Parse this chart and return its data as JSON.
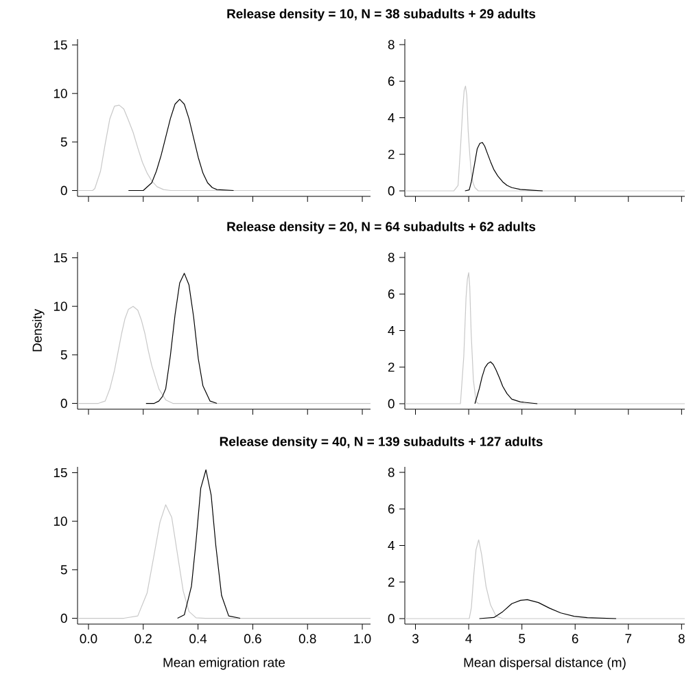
{
  "chart_data": [
    {
      "type": "line",
      "title": "Release density = 10, N = 38 subadults + 29 adults",
      "xlim": [
        -0.04,
        1.03
      ],
      "ylim": [
        -0.6,
        15.6
      ],
      "xticks": [
        {
          "value": 0,
          "label": null
        },
        {
          "value": 0.2,
          "label": null
        },
        {
          "value": 0.4,
          "label": null
        },
        {
          "value": 0.6,
          "label": null
        },
        {
          "value": 0.8,
          "label": null
        },
        {
          "value": 1,
          "label": null
        }
      ],
      "yticks": [
        0,
        5,
        10,
        15
      ],
      "tick_labels": "y",
      "series": [
        {
          "color": "#c8c8c8",
          "x": [
            -0.04,
            0.015,
            0.023,
            0.044,
            0.061,
            0.078,
            0.095,
            0.112,
            0.129,
            0.145,
            0.163,
            0.18,
            0.197,
            0.214,
            0.231,
            0.25,
            0.274,
            0.3,
            1.03
          ],
          "values": [
            0,
            0,
            0.2,
            2.0,
            4.8,
            7.4,
            8.7,
            8.8,
            8.4,
            7.3,
            6.0,
            4.4,
            2.9,
            1.8,
            1.0,
            0.4,
            0.1,
            0,
            0
          ]
        },
        {
          "color": "#000000",
          "x": [
            0.146,
            0.2,
            0.231,
            0.248,
            0.265,
            0.282,
            0.299,
            0.316,
            0.333,
            0.35,
            0.367,
            0.384,
            0.401,
            0.418,
            0.435,
            0.452,
            0.469,
            0.53
          ],
          "values": [
            0,
            0,
            0.8,
            2.0,
            3.6,
            5.5,
            7.4,
            8.9,
            9.4,
            8.9,
            7.4,
            5.4,
            3.4,
            1.8,
            0.8,
            0.3,
            0.1,
            0
          ]
        }
      ]
    },
    {
      "type": "line",
      "xlim": [
        2.8,
        8.06
      ],
      "ylim": [
        -0.3,
        8.3
      ],
      "xticks": [
        3,
        4,
        5,
        6,
        7,
        8
      ],
      "yticks": [
        0,
        2,
        4,
        6,
        8
      ],
      "tick_labels": "y",
      "series": [
        {
          "color": "#c8c8c8",
          "x": [
            2.8,
            3.72,
            3.8,
            3.845,
            3.887,
            3.915,
            3.94,
            3.965,
            3.99,
            4.02,
            4.046,
            4.08,
            4.117,
            4.18,
            8.06
          ],
          "values": [
            0,
            0,
            0.3,
            2.3,
            4.45,
            5.5,
            5.73,
            5.2,
            3.3,
            2.0,
            1.05,
            0.45,
            0.18,
            0,
            0
          ]
        },
        {
          "color": "#000000",
          "x": [
            3.93,
            4.01,
            4.05,
            4.1,
            4.16,
            4.21,
            4.255,
            4.3,
            4.35,
            4.41,
            4.47,
            4.55,
            4.64,
            4.72,
            4.81,
            4.97,
            5.2,
            5.39
          ],
          "values": [
            0,
            0.05,
            0.5,
            1.3,
            2.3,
            2.6,
            2.65,
            2.45,
            2.06,
            1.6,
            1.18,
            0.8,
            0.49,
            0.3,
            0.18,
            0.08,
            0.03,
            0
          ]
        }
      ]
    },
    {
      "type": "line",
      "title": "Release density = 20, N = 64 subadults + 62 adults",
      "ylabel": "Density",
      "xlim": [
        -0.04,
        1.03
      ],
      "ylim": [
        -0.6,
        15.6
      ],
      "xticks": [
        {
          "value": 0,
          "label": null
        },
        {
          "value": 0.2,
          "label": null
        },
        {
          "value": 0.4,
          "label": null
        },
        {
          "value": 0.6,
          "label": null
        },
        {
          "value": 0.8,
          "label": null
        },
        {
          "value": 1,
          "label": null
        }
      ],
      "yticks": [
        0,
        5,
        10,
        15
      ],
      "tick_labels": "y",
      "series": [
        {
          "color": "#c8c8c8",
          "x": [
            -0.04,
            0.036,
            0.061,
            0.078,
            0.095,
            0.108,
            0.121,
            0.133,
            0.146,
            0.163,
            0.18,
            0.193,
            0.206,
            0.218,
            0.231,
            0.257,
            0.282,
            0.308,
            1.03
          ],
          "values": [
            0,
            0,
            0.24,
            1.5,
            3.4,
            5.3,
            7.2,
            8.7,
            9.7,
            10.0,
            9.6,
            8.6,
            7.2,
            5.5,
            3.9,
            1.5,
            0.36,
            0,
            0
          ]
        },
        {
          "color": "#000000",
          "x": [
            0.21,
            0.24,
            0.257,
            0.27,
            0.282,
            0.299,
            0.316,
            0.333,
            0.35,
            0.367,
            0.384,
            0.401,
            0.418,
            0.444,
            0.469
          ],
          "values": [
            0,
            0,
            0.24,
            0.7,
            1.5,
            4.9,
            9.1,
            12.4,
            13.4,
            12.2,
            8.9,
            4.6,
            1.8,
            0.24,
            0
          ]
        }
      ]
    },
    {
      "type": "line",
      "xlim": [
        2.8,
        8.06
      ],
      "ylim": [
        -0.3,
        8.3
      ],
      "xticks": [
        3,
        4,
        5,
        6,
        7,
        8
      ],
      "yticks": [
        0,
        2,
        4,
        6,
        8
      ],
      "tick_labels": "y",
      "series": [
        {
          "color": "#c8c8c8",
          "x": [
            2.8,
            3.845,
            3.908,
            3.95,
            3.975,
            4.0,
            4.02,
            4.046,
            4.088,
            4.138,
            4.18,
            8.06
          ],
          "values": [
            0,
            0,
            2.6,
            5.8,
            6.8,
            7.17,
            6.4,
            3.9,
            1.3,
            0.13,
            0,
            0
          ]
        },
        {
          "color": "#000000",
          "x": [
            4.117,
            4.2,
            4.25,
            4.305,
            4.36,
            4.41,
            4.46,
            4.515,
            4.58,
            4.64,
            4.72,
            4.81,
            4.97,
            5.29
          ],
          "values": [
            0,
            0.83,
            1.45,
            1.97,
            2.2,
            2.29,
            2.15,
            1.84,
            1.4,
            0.95,
            0.55,
            0.25,
            0.1,
            0
          ]
        }
      ]
    },
    {
      "type": "line",
      "title": "Release density = 40, N = 139 subadults + 127 adults",
      "xlabel": "Mean emigration rate",
      "xlim": [
        -0.04,
        1.03
      ],
      "ylim": [
        -0.6,
        15.6
      ],
      "xticks": [
        {
          "value": 0,
          "label": "0.0"
        },
        0.2,
        0.4,
        0.6,
        0.8,
        {
          "value": 1,
          "label": "1.0"
        }
      ],
      "yticks": [
        0,
        5,
        10,
        15
      ],
      "series": [
        {
          "color": "#c8c8c8",
          "x": [
            -0.04,
            0.129,
            0.18,
            0.214,
            0.24,
            0.261,
            0.282,
            0.304,
            0.325,
            0.346,
            0.367,
            0.393,
            0.427,
            1.03
          ],
          "values": [
            0,
            0,
            0.24,
            2.6,
            6.6,
            9.9,
            11.7,
            10.4,
            6.6,
            2.8,
            0.7,
            0.05,
            0,
            0
          ]
        },
        {
          "color": "#000000",
          "x": [
            0.325,
            0.35,
            0.376,
            0.393,
            0.41,
            0.429,
            0.448,
            0.465,
            0.486,
            0.512,
            0.554
          ],
          "values": [
            0,
            0.35,
            3.3,
            8.0,
            13.4,
            15.3,
            12.7,
            7.5,
            2.35,
            0.24,
            0
          ]
        }
      ]
    },
    {
      "type": "line",
      "xlabel": "Mean dispersal distance (m)",
      "xlim": [
        2.8,
        8.06
      ],
      "ylim": [
        -0.3,
        8.3
      ],
      "xticks": [
        3,
        4,
        5,
        6,
        7,
        8
      ],
      "yticks": [
        0,
        2,
        4,
        6,
        8
      ],
      "series": [
        {
          "color": "#c8c8c8",
          "x": [
            2.8,
            4.01,
            4.05,
            4.096,
            4.138,
            4.188,
            4.243,
            4.326,
            4.41,
            4.515,
            4.64,
            8.06
          ],
          "values": [
            0,
            0,
            0.6,
            2.4,
            3.77,
            4.31,
            3.5,
            1.76,
            0.75,
            0.13,
            0,
            0
          ]
        },
        {
          "color": "#000000",
          "x": [
            4.2,
            4.473,
            4.64,
            4.81,
            4.975,
            5.1,
            5.31,
            5.52,
            5.73,
            5.98,
            6.23,
            6.77
          ],
          "values": [
            0,
            0.06,
            0.38,
            0.82,
            1.0,
            1.04,
            0.88,
            0.57,
            0.31,
            0.13,
            0.05,
            0
          ]
        }
      ]
    }
  ]
}
